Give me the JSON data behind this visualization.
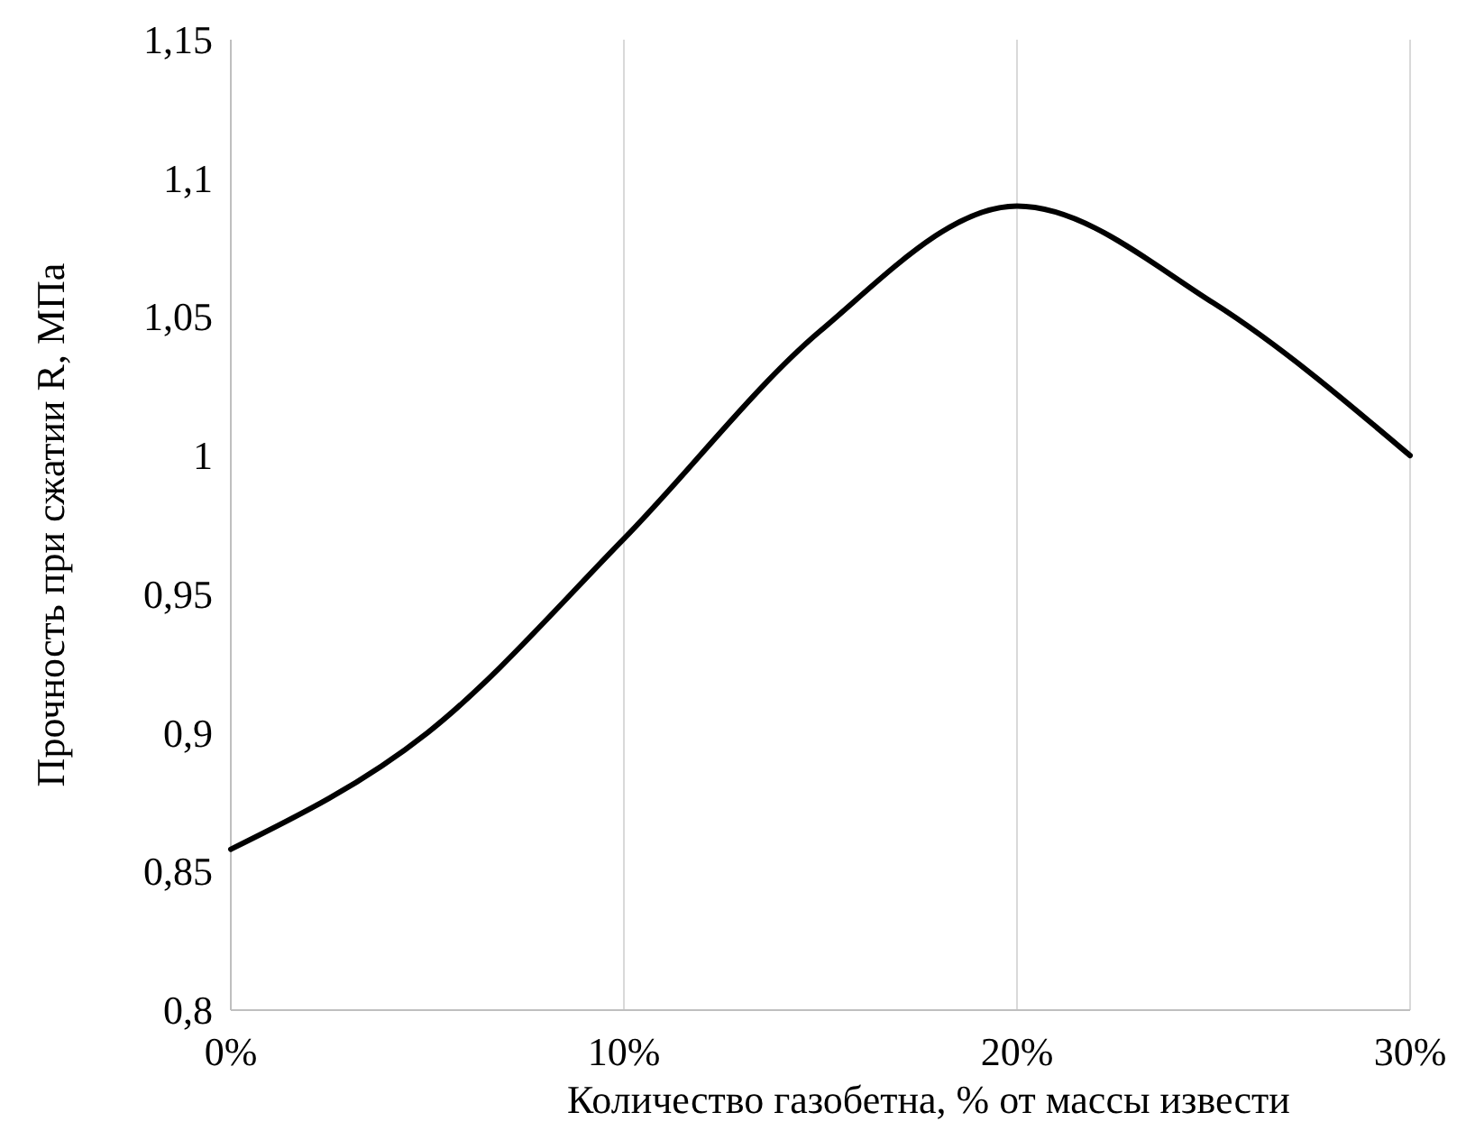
{
  "chart_data": {
    "type": "line",
    "xlabel": "Количество газобетна, % от массы извести",
    "ylabel": "Прочность при сжатии R, МПа",
    "x": [
      0,
      5,
      10,
      15,
      20,
      25,
      30
    ],
    "series": [
      {
        "color": "#000000",
        "values": [
          0.858,
          0.9,
          0.97,
          1.045,
          1.09,
          1.055,
          1.0
        ]
      }
    ],
    "xlim": [
      0,
      30
    ],
    "xticks": [
      {
        "value": 0,
        "label": "0%"
      },
      {
        "value": 10,
        "label": "10%"
      },
      {
        "value": 20,
        "label": "20%"
      },
      {
        "value": 30,
        "label": "30%"
      }
    ],
    "ylim": [
      0.8,
      1.15
    ],
    "yticks": [
      {
        "value": 0.8,
        "label": "0,8"
      },
      {
        "value": 0.85,
        "label": "0,85"
      },
      {
        "value": 0.9,
        "label": "0,9"
      },
      {
        "value": 0.95,
        "label": "0,95"
      },
      {
        "value": 1,
        "label": "1"
      },
      {
        "value": 1.05,
        "label": "1,05"
      },
      {
        "value": 1.1,
        "label": "1,1"
      },
      {
        "value": 1.15,
        "label": "1,15"
      }
    ],
    "grid": "x",
    "marker": "none",
    "line_style": "solid"
  }
}
